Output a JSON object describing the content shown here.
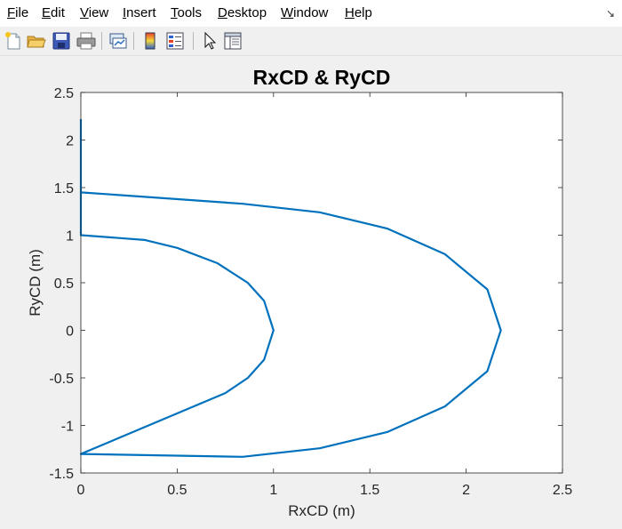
{
  "menu": {
    "items": [
      "File",
      "Edit",
      "View",
      "Insert",
      "Tools",
      "Desktop",
      "Window",
      "Help"
    ],
    "mnemonics": [
      "F",
      "E",
      "V",
      "I",
      "T",
      "D",
      "W",
      "H"
    ],
    "dock_glyph": "↘"
  },
  "toolbar": {
    "icons": [
      "new-figure-icon",
      "open-file-icon",
      "save-icon",
      "print-icon",
      "link-plot-icon",
      "insert-colorbar-icon",
      "insert-legend-icon",
      "edit-plot-icon",
      "property-inspector-icon"
    ]
  },
  "colors": {
    "line": "#0072bd",
    "axes_bg": "#ffffff",
    "figure_bg": "#f0f0f0"
  },
  "chart_data": {
    "type": "line",
    "title": "RxCD & RyCD",
    "xlabel": "RxCD (m)",
    "ylabel": "RyCD (m)",
    "xlim": [
      0,
      2.5
    ],
    "ylim": [
      -1.5,
      2.5
    ],
    "xticks": [
      "0",
      "0.5",
      "1",
      "1.5",
      "2",
      "2.5"
    ],
    "yticks": [
      "2.5",
      "2",
      "1.5",
      "1",
      "0.5",
      "0",
      "-0.5",
      "-1",
      "-1.5"
    ],
    "grid": false,
    "series": [
      {
        "x": [
          0,
          0,
          0,
          0.84,
          1.24,
          1.59,
          1.89,
          2.11,
          2.18,
          2.11,
          1.89,
          1.59,
          1.24,
          0.84,
          0,
          0.75,
          0.867,
          0.951,
          1.0,
          0.951,
          0.866,
          0.707,
          0.5,
          0.33,
          0,
          0
        ],
        "y": [
          2.22,
          1.5,
          1.45,
          1.33,
          1.24,
          1.07,
          0.8,
          0.43,
          0,
          -0.43,
          -0.8,
          -1.07,
          -1.24,
          -1.33,
          -1.3,
          -0.66,
          -0.5,
          -0.31,
          0,
          0.31,
          0.5,
          0.707,
          0.866,
          0.95,
          1.0,
          1.5
        ]
      }
    ]
  }
}
